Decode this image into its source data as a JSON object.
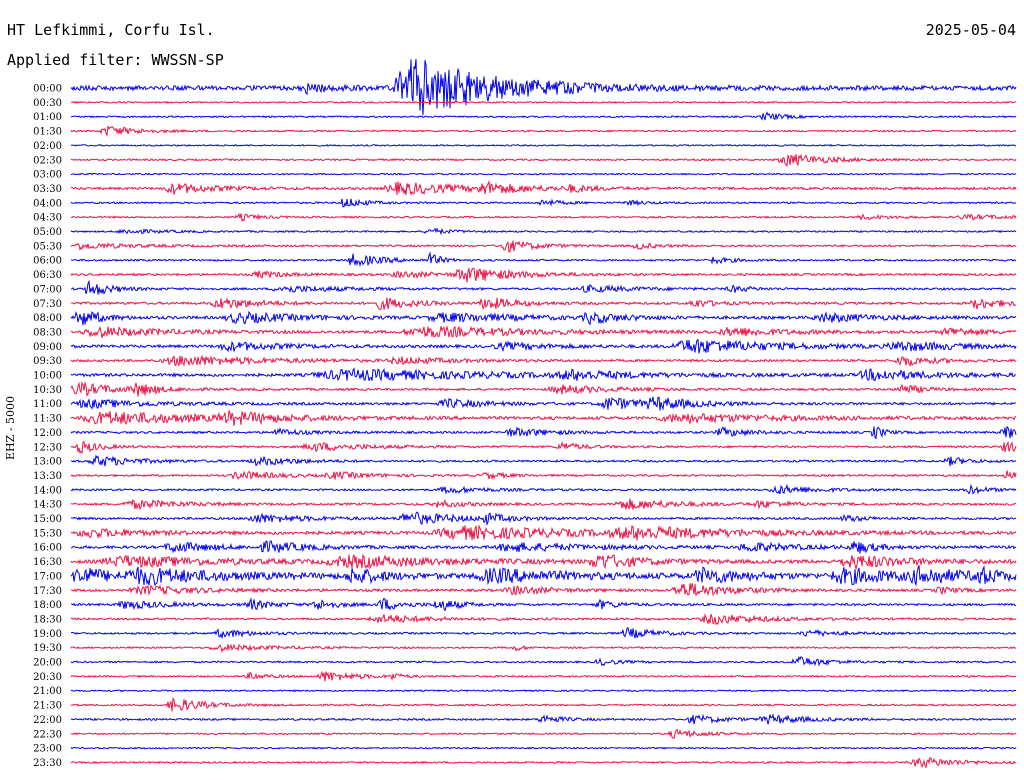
{
  "header": {
    "station": "HT Lefkimmi, Corfu Isl.",
    "date": "2025-05-04",
    "filter": "Applied filter: WWSSN-SP",
    "channel": "EHZ - 5000"
  },
  "colors": {
    "even_row": "#0000ee",
    "odd_row": "#ee1144"
  },
  "chart_data": {
    "type": "line",
    "title": "",
    "xlabel": "",
    "ylabel": "EHZ - 5000",
    "legend": "none",
    "grid": false,
    "x_range_minutes": [
      0,
      30
    ],
    "rows": [
      {
        "label": "00:00",
        "events": [
          [
            0.25,
            4,
            0.03
          ],
          [
            0.365,
            30,
            0.08
          ]
        ]
      },
      {
        "label": "00:30",
        "events": []
      },
      {
        "label": "01:00",
        "events": [
          [
            0.735,
            4,
            0.02
          ]
        ]
      },
      {
        "label": "01:30",
        "events": [
          [
            0.04,
            5,
            0.03
          ]
        ]
      },
      {
        "label": "02:00",
        "events": []
      },
      {
        "label": "02:30",
        "events": [
          [
            0.76,
            6,
            0.04
          ]
        ]
      },
      {
        "label": "03:00",
        "events": []
      },
      {
        "label": "03:30",
        "events": [
          [
            0.11,
            5,
            0.04
          ],
          [
            0.35,
            6,
            0.06
          ],
          [
            0.44,
            5,
            0.04
          ],
          [
            0.53,
            3,
            0.02
          ]
        ]
      },
      {
        "label": "04:00",
        "events": [
          [
            0.29,
            5,
            0.02
          ],
          [
            0.5,
            3,
            0.02
          ],
          [
            0.59,
            2,
            0.02
          ]
        ]
      },
      {
        "label": "04:30",
        "events": [
          [
            0.18,
            3,
            0.02
          ],
          [
            0.84,
            2,
            0.03
          ],
          [
            0.95,
            2,
            0.05
          ]
        ]
      },
      {
        "label": "05:00",
        "events": [
          [
            0.06,
            2,
            0.04
          ],
          [
            0.38,
            3,
            0.02
          ]
        ]
      },
      {
        "label": "05:30",
        "events": [
          [
            0.01,
            3,
            0.05
          ],
          [
            0.46,
            6,
            0.03
          ],
          [
            0.6,
            3,
            0.02
          ]
        ]
      },
      {
        "label": "06:00",
        "events": [
          [
            0.3,
            6,
            0.03
          ],
          [
            0.38,
            7,
            0.01
          ],
          [
            0.68,
            3,
            0.02
          ]
        ]
      },
      {
        "label": "06:30",
        "events": [
          [
            0.2,
            3,
            0.03
          ],
          [
            0.35,
            3,
            0.04
          ],
          [
            0.42,
            7,
            0.05
          ]
        ]
      },
      {
        "label": "07:00",
        "events": [
          [
            0.02,
            8,
            0.02
          ],
          [
            0.23,
            3,
            0.06
          ],
          [
            0.55,
            3,
            0.05
          ],
          [
            0.7,
            3,
            0.02
          ]
        ]
      },
      {
        "label": "07:30",
        "events": [
          [
            0.16,
            5,
            0.04
          ],
          [
            0.33,
            6,
            0.03
          ],
          [
            0.44,
            6,
            0.03
          ],
          [
            0.66,
            4,
            0.02
          ],
          [
            0.96,
            5,
            0.03
          ]
        ]
      },
      {
        "label": "08:00",
        "events": [
          [
            0.01,
            9,
            0.02
          ],
          [
            0.18,
            5,
            0.06
          ],
          [
            0.4,
            4,
            0.08
          ],
          [
            0.55,
            5,
            0.03
          ],
          [
            0.8,
            4,
            0.05
          ]
        ]
      },
      {
        "label": "08:30",
        "events": [
          [
            0.03,
            5,
            0.06
          ],
          [
            0.38,
            5,
            0.1
          ],
          [
            0.7,
            4,
            0.05
          ],
          [
            0.93,
            4,
            0.03
          ]
        ]
      },
      {
        "label": "09:00",
        "events": [
          [
            0.17,
            4,
            0.05
          ],
          [
            0.46,
            3,
            0.05
          ],
          [
            0.66,
            7,
            0.08
          ],
          [
            0.88,
            4,
            0.06
          ]
        ]
      },
      {
        "label": "09:30",
        "events": [
          [
            0.12,
            5,
            0.08
          ],
          [
            0.35,
            3,
            0.05
          ],
          [
            0.88,
            5,
            0.03
          ]
        ]
      },
      {
        "label": "10:00",
        "events": [
          [
            0.3,
            5,
            0.15
          ],
          [
            0.53,
            4,
            0.05
          ],
          [
            0.85,
            5,
            0.06
          ]
        ]
      },
      {
        "label": "10:30",
        "events": [
          [
            0.01,
            6,
            0.04
          ],
          [
            0.07,
            6,
            0.02
          ],
          [
            0.52,
            4,
            0.05
          ],
          [
            0.88,
            5,
            0.02
          ]
        ]
      },
      {
        "label": "11:00",
        "events": [
          [
            0.02,
            4,
            0.06
          ],
          [
            0.4,
            4,
            0.04
          ],
          [
            0.57,
            6,
            0.04
          ],
          [
            0.62,
            5,
            0.04
          ]
        ]
      },
      {
        "label": "11:30",
        "events": [
          [
            0.04,
            6,
            0.1
          ],
          [
            0.17,
            5,
            0.05
          ],
          [
            0.65,
            4,
            0.1
          ]
        ]
      },
      {
        "label": "12:00",
        "events": [
          [
            0.22,
            3,
            0.03
          ],
          [
            0.47,
            4,
            0.04
          ],
          [
            0.69,
            4,
            0.03
          ],
          [
            0.85,
            7,
            0.01
          ],
          [
            0.99,
            6,
            0.02
          ]
        ]
      },
      {
        "label": "12:30",
        "events": [
          [
            0.01,
            6,
            0.02
          ],
          [
            0.26,
            4,
            0.05
          ],
          [
            0.52,
            4,
            0.02
          ],
          [
            0.99,
            5,
            0.02
          ]
        ]
      },
      {
        "label": "13:00",
        "events": [
          [
            0.03,
            5,
            0.04
          ],
          [
            0.2,
            4,
            0.04
          ],
          [
            0.93,
            4,
            0.02
          ]
        ]
      },
      {
        "label": "13:30",
        "events": [
          [
            0.18,
            4,
            0.04
          ],
          [
            0.28,
            3,
            0.04
          ],
          [
            0.44,
            3,
            0.02
          ],
          [
            0.99,
            5,
            0.01
          ]
        ]
      },
      {
        "label": "14:00",
        "events": [
          [
            0.4,
            3,
            0.04
          ],
          [
            0.75,
            4,
            0.04
          ],
          [
            0.95,
            4,
            0.02
          ]
        ]
      },
      {
        "label": "14:30",
        "events": [
          [
            0.07,
            4,
            0.05
          ],
          [
            0.39,
            3,
            0.03
          ],
          [
            0.59,
            5,
            0.05
          ],
          [
            0.73,
            3,
            0.03
          ]
        ]
      },
      {
        "label": "15:00",
        "events": [
          [
            0.2,
            4,
            0.05
          ],
          [
            0.36,
            6,
            0.05
          ],
          [
            0.44,
            4,
            0.02
          ],
          [
            0.82,
            3,
            0.02
          ]
        ]
      },
      {
        "label": "15:30",
        "events": [
          [
            0.02,
            4,
            0.05
          ],
          [
            0.42,
            6,
            0.12
          ],
          [
            0.6,
            5,
            0.1
          ]
        ]
      },
      {
        "label": "16:00",
        "events": [
          [
            0.11,
            5,
            0.04
          ],
          [
            0.21,
            5,
            0.04
          ],
          [
            0.47,
            4,
            0.08
          ],
          [
            0.72,
            4,
            0.05
          ],
          [
            0.83,
            6,
            0.02
          ]
        ]
      },
      {
        "label": "16:30",
        "events": [
          [
            0.06,
            5,
            0.1
          ],
          [
            0.3,
            5,
            0.1
          ],
          [
            0.56,
            7,
            0.04
          ],
          [
            0.83,
            6,
            0.06
          ]
        ]
      },
      {
        "label": "17:00",
        "events": [
          [
            0.01,
            9,
            0.03
          ],
          [
            0.08,
            7,
            0.08
          ],
          [
            0.3,
            7,
            0.03
          ],
          [
            0.45,
            6,
            0.08
          ],
          [
            0.67,
            7,
            0.04
          ],
          [
            0.82,
            7,
            0.06
          ],
          [
            0.9,
            7,
            0.04
          ],
          [
            0.96,
            7,
            0.02
          ]
        ]
      },
      {
        "label": "17:30",
        "events": [
          [
            0.08,
            4,
            0.06
          ],
          [
            0.47,
            4,
            0.04
          ],
          [
            0.65,
            7,
            0.05
          ],
          [
            0.92,
            3,
            0.02
          ]
        ]
      },
      {
        "label": "18:00",
        "events": [
          [
            0.06,
            4,
            0.04
          ],
          [
            0.19,
            5,
            0.02
          ],
          [
            0.26,
            5,
            0.02
          ],
          [
            0.33,
            6,
            0.02
          ],
          [
            0.39,
            6,
            0.02
          ],
          [
            0.56,
            4,
            0.02
          ]
        ]
      },
      {
        "label": "18:30",
        "events": [
          [
            0.33,
            4,
            0.05
          ],
          [
            0.68,
            5,
            0.05
          ]
        ]
      },
      {
        "label": "19:00",
        "events": [
          [
            0.16,
            4,
            0.03
          ],
          [
            0.59,
            5,
            0.03
          ],
          [
            0.78,
            3,
            0.03
          ]
        ]
      },
      {
        "label": "19:30",
        "events": [
          [
            0.16,
            3,
            0.05
          ],
          [
            0.47,
            3,
            0.01
          ]
        ]
      },
      {
        "label": "20:00",
        "events": [
          [
            0.56,
            3,
            0.02
          ],
          [
            0.77,
            5,
            0.03
          ]
        ]
      },
      {
        "label": "20:30",
        "events": [
          [
            0.19,
            3,
            0.02
          ],
          [
            0.27,
            5,
            0.03
          ],
          [
            0.34,
            3,
            0.01
          ]
        ]
      },
      {
        "label": "21:00",
        "events": []
      },
      {
        "label": "21:30",
        "events": [
          [
            0.11,
            7,
            0.03
          ]
        ]
      },
      {
        "label": "22:00",
        "events": [
          [
            0.5,
            4,
            0.02
          ],
          [
            0.66,
            4,
            0.03
          ],
          [
            0.74,
            4,
            0.04
          ]
        ]
      },
      {
        "label": "22:30",
        "events": [
          [
            0.64,
            4,
            0.03
          ]
        ]
      },
      {
        "label": "23:00",
        "events": []
      },
      {
        "label": "23:30",
        "events": [
          [
            0.9,
            5,
            0.04
          ]
        ]
      }
    ]
  }
}
